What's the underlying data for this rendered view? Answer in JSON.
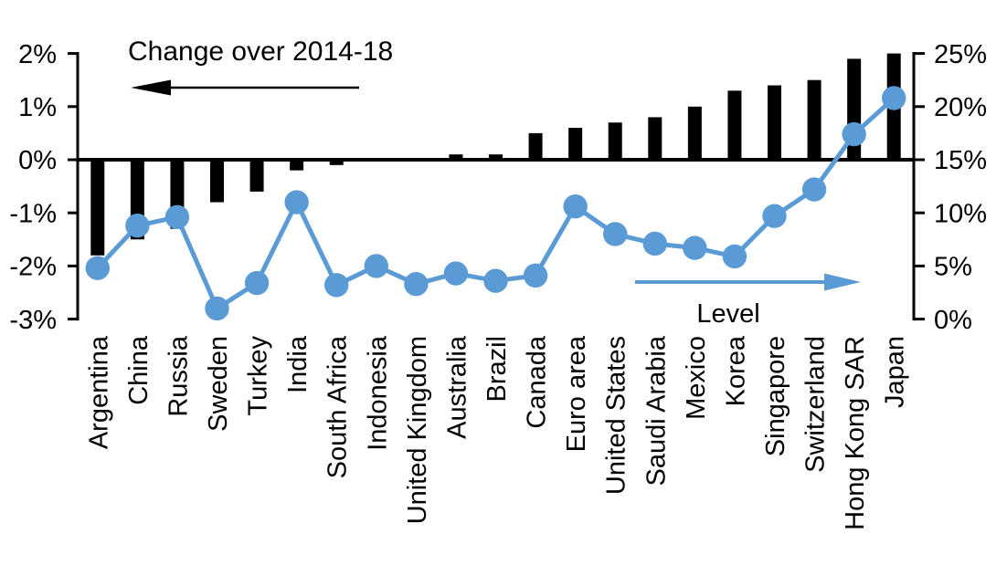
{
  "chart_data": {
    "type": "bar",
    "subtype": "combo-bar-line-dual-axis",
    "categories": [
      "Argentina",
      "China",
      "Russia",
      "Sweden",
      "Turkey",
      "India",
      "South Africa",
      "Indonesia",
      "United Kingdom",
      "Australia",
      "Brazil",
      "Canada",
      "Euro area",
      "United States",
      "Saudi Arabia",
      "Mexico",
      "Korea",
      "Singapore",
      "Switzerland",
      "Hong Kong SAR",
      "Japan"
    ],
    "series": [
      {
        "name": "Change over 2014-18",
        "type": "bar",
        "axis": "left",
        "color": "#000000",
        "values": [
          -1.8,
          -1.5,
          -1.3,
          -0.8,
          -0.6,
          -0.2,
          -0.1,
          0.0,
          0.0,
          0.1,
          0.1,
          0.5,
          0.6,
          0.7,
          0.8,
          1.0,
          1.3,
          1.4,
          1.5,
          1.9,
          2.0
        ]
      },
      {
        "name": "Level",
        "type": "line",
        "axis": "right",
        "color": "#5B9BD5",
        "values": [
          4.8,
          8.8,
          9.6,
          1.0,
          3.4,
          11.0,
          3.2,
          5.0,
          3.3,
          4.3,
          3.6,
          4.1,
          10.6,
          8.0,
          7.1,
          6.7,
          5.9,
          9.7,
          12.2,
          17.4,
          20.8
        ]
      }
    ],
    "left_axis": {
      "min": -3,
      "max": 2,
      "tick_labels": [
        "2%",
        "1%",
        "0%",
        "-1%",
        "-2%",
        "-3%"
      ],
      "tick_values": [
        2,
        1,
        0,
        -1,
        -2,
        -3
      ]
    },
    "right_axis": {
      "min": 0,
      "max": 25,
      "tick_labels": [
        "25%",
        "20%",
        "15%",
        "10%",
        "5%",
        "0%"
      ],
      "tick_values": [
        25,
        20,
        15,
        10,
        5,
        0
      ]
    },
    "annotations": [
      {
        "text": "Change over 2014-18",
        "icon": "left-arrow-icon",
        "arrow_color": "#000000",
        "text_color": "#000000"
      },
      {
        "text": "Level",
        "icon": "right-arrow-icon",
        "arrow_color": "#5B9BD5",
        "text_color": "#000000"
      }
    ],
    "grid": false,
    "legend_position": "in-plot-arrow-annotations",
    "background": "#ffffff"
  }
}
